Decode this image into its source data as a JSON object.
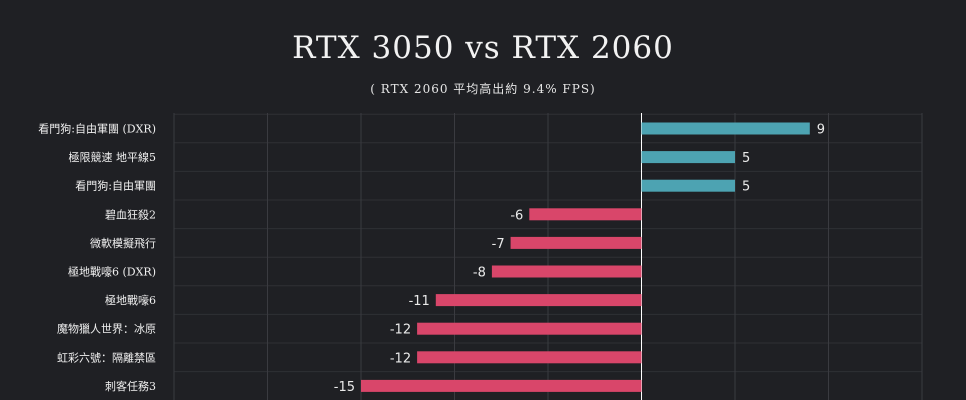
{
  "chart_data": {
    "type": "bar",
    "orientation": "horizontal",
    "title": "RTX 3050 vs RTX 2060",
    "subtitle": "( RTX 2060 平均高出約 9.4% FPS)",
    "categories": [
      "看門狗:自由軍團 (DXR)",
      "極限競速 地平線5",
      "看門狗:自由軍團",
      "碧血狂殺2",
      "微軟模擬飛行",
      "極地戰嚎6 (DXR)",
      "極地戰嚎6",
      "魔物獵人世界：冰原",
      "虹彩六號：隔離禁區",
      "刺客任務3"
    ],
    "values": [
      9,
      5,
      5,
      -6,
      -7,
      -8,
      -11,
      -12,
      -12,
      -15
    ],
    "value_labels": [
      "9",
      "5",
      "5",
      "-6",
      "-7",
      "-8",
      "-11",
      "-12",
      "-12",
      "-15"
    ],
    "xlim": [
      -25,
      15
    ],
    "grid": true,
    "colors": {
      "positive": "#4da3b2",
      "negative": "#d9466a",
      "grid": "#3a3b40",
      "zero_line": "#ffffff"
    }
  }
}
